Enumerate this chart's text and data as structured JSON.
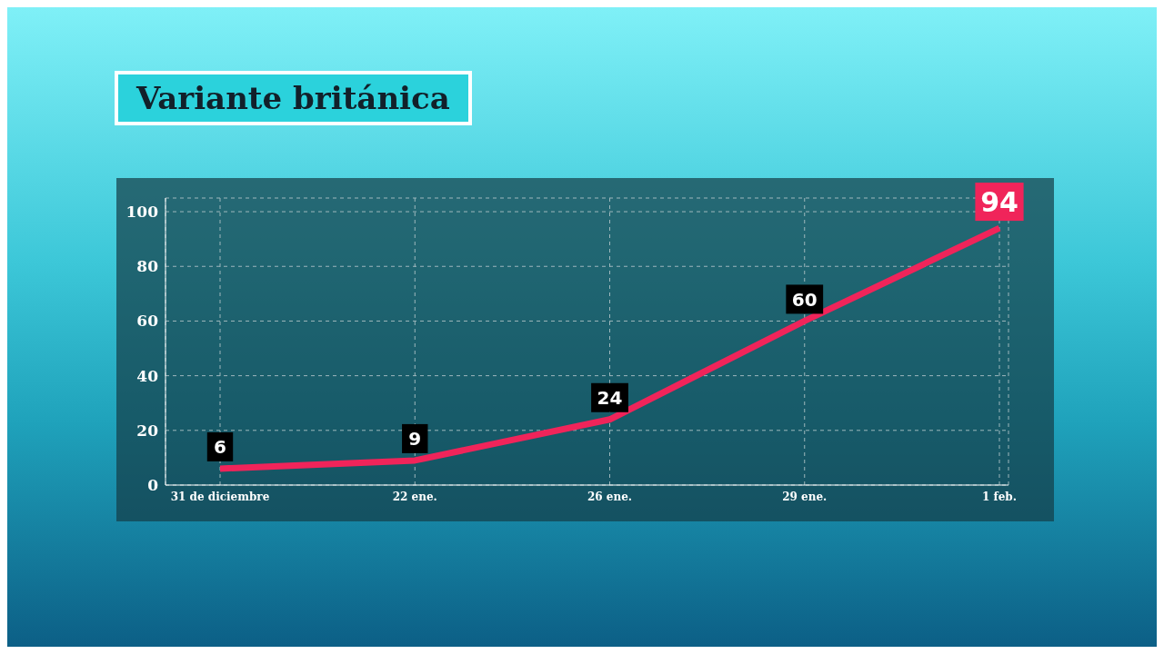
{
  "chart_data": {
    "type": "line",
    "title": "Variante británica",
    "categories": [
      "31 de diciembre",
      "22 ene.",
      "26 ene.",
      "29 ene.",
      "1 feb."
    ],
    "series": [
      {
        "color": "#f0245a",
        "values": [
          6,
          9,
          24,
          60,
          94
        ]
      }
    ],
    "ylim": [
      0,
      105
    ],
    "yticks": [
      0,
      20,
      40,
      60,
      80,
      100
    ],
    "grid": true,
    "marker": "none",
    "line_style": "solid",
    "data_labels": true
  }
}
